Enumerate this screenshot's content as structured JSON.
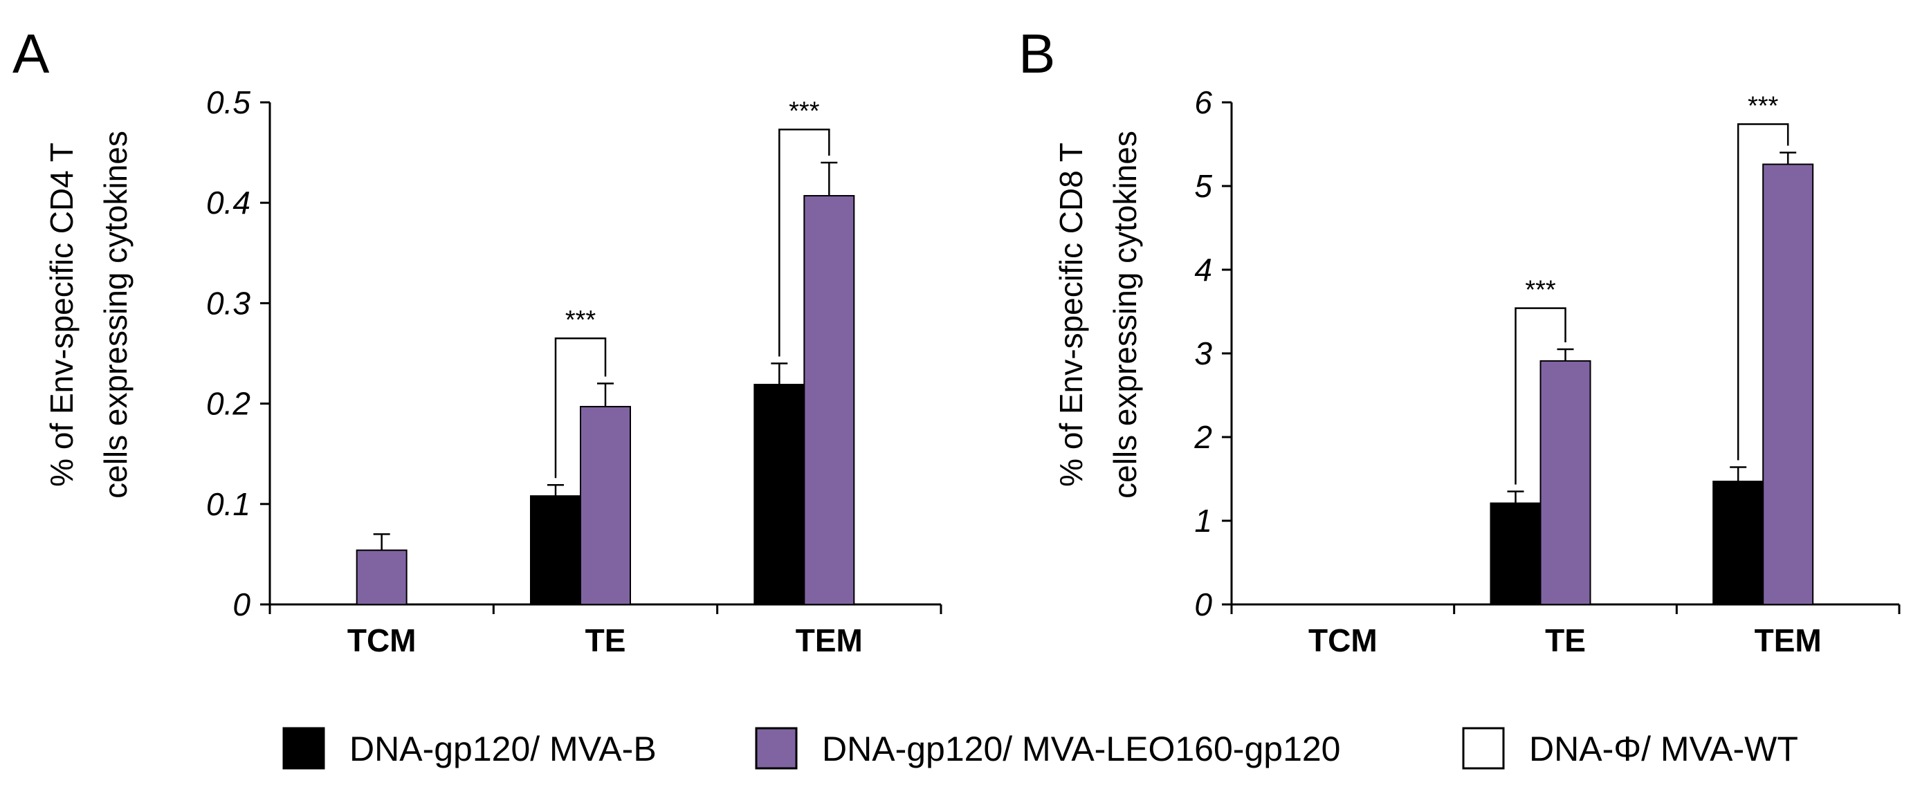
{
  "panels": [
    {
      "letter": "A",
      "ylabel_line1": "% of Env-specific CD4 T",
      "ylabel_line2": "cells expressing cytokines"
    },
    {
      "letter": "B",
      "ylabel_line1": "% of Env-specific CD8 T",
      "ylabel_line2": "cells expressing cytokines"
    }
  ],
  "legend": {
    "items": [
      {
        "label": "DNA-gp120/ MVA-B",
        "color": "#000000"
      },
      {
        "label": "DNA-gp120/ MVA-LEO160-gp120",
        "color": "#8064A2"
      },
      {
        "label": "DNA-Φ/ MVA-WT",
        "color": "#FFFFFF"
      }
    ]
  },
  "chart_data": [
    {
      "type": "bar",
      "title": "A",
      "ylabel": "% of Env-specific CD4 T cells expressing cytokines",
      "xlabel": "",
      "categories": [
        "TCM",
        "TE",
        "TEM"
      ],
      "ylim": [
        0,
        0.5
      ],
      "yticks": [
        0,
        0.1,
        0.2,
        0.3,
        0.4,
        0.5
      ],
      "ytick_labels": [
        "0",
        "0.1",
        "0.2",
        "0.3",
        "0.4",
        "0.5"
      ],
      "series": [
        {
          "name": "DNA-gp120/ MVA-B",
          "color": "#000000",
          "values": [
            0,
            0.108,
            0.219
          ],
          "errors": [
            0,
            0.011,
            0.021
          ]
        },
        {
          "name": "DNA-gp120/ MVA-LEO160-gp120",
          "color": "#8064A2",
          "values": [
            0.054,
            0.197,
            0.407
          ],
          "errors": [
            0.016,
            0.023,
            0.033
          ]
        },
        {
          "name": "DNA-Φ/ MVA-WT",
          "color": "#FFFFFF",
          "values": [
            0,
            0,
            0
          ],
          "errors": [
            0,
            0,
            0
          ]
        }
      ],
      "annotations": [
        {
          "text": "***",
          "category": "TE",
          "between": [
            0,
            1
          ],
          "level": 0.265
        },
        {
          "text": "***",
          "category": "TEM",
          "between": [
            0,
            1
          ],
          "level": 0.473
        }
      ]
    },
    {
      "type": "bar",
      "title": "B",
      "ylabel": "% of Env-specific CD8 T cells expressing cytokines",
      "xlabel": "",
      "categories": [
        "TCM",
        "TE",
        "TEM"
      ],
      "ylim": [
        0,
        6
      ],
      "yticks": [
        0,
        1,
        2,
        3,
        4,
        5,
        6
      ],
      "ytick_labels": [
        "0",
        "1",
        "2",
        "3",
        "4",
        "5",
        "6"
      ],
      "series": [
        {
          "name": "DNA-gp120/ MVA-B",
          "color": "#000000",
          "values": [
            0,
            1.21,
            1.47
          ],
          "errors": [
            0,
            0.14,
            0.17
          ]
        },
        {
          "name": "DNA-gp120/ MVA-LEO160-gp120",
          "color": "#8064A2",
          "values": [
            0,
            2.91,
            5.26
          ],
          "errors": [
            0,
            0.14,
            0.14
          ]
        },
        {
          "name": "DNA-Φ/ MVA-WT",
          "color": "#FFFFFF",
          "values": [
            0,
            0,
            0
          ],
          "errors": [
            0,
            0,
            0
          ]
        }
      ],
      "annotations": [
        {
          "text": "***",
          "category": "TE",
          "between": [
            0,
            1
          ],
          "level": 3.54
        },
        {
          "text": "***",
          "category": "TEM",
          "between": [
            0,
            1
          ],
          "level": 5.74
        }
      ]
    }
  ]
}
